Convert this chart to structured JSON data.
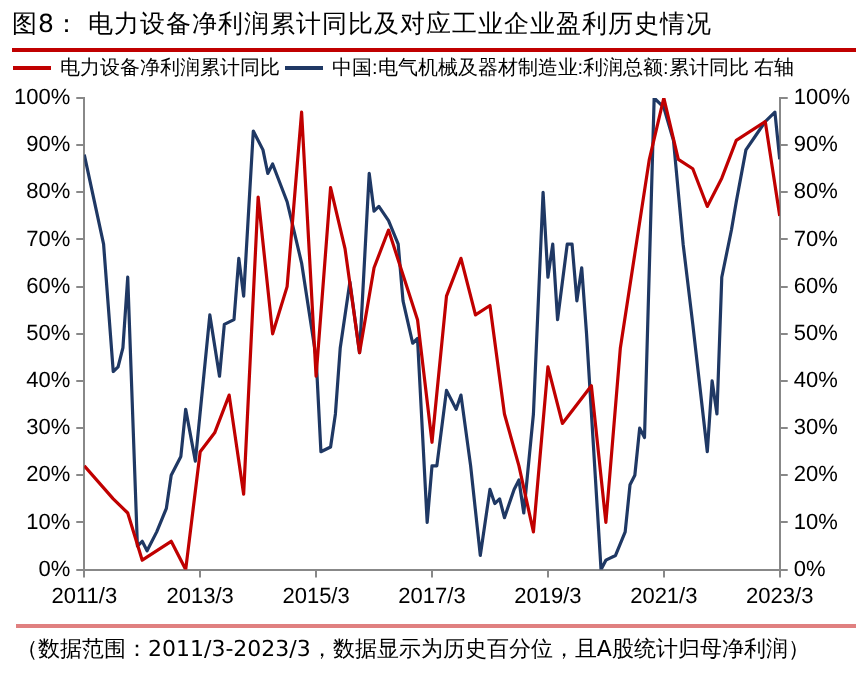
{
  "chart_data": {
    "type": "line",
    "title": "图8：  电力设备净利润累计同比及对应工业企业盈利历史情况",
    "annotations": [
      "（数据范围：2011/3-2023/3，数据显示为历史百分位，且A股统计归母净利润）"
    ],
    "legend": "top left",
    "grid": false,
    "marker": "none",
    "line_style": "solid",
    "xlim": [
      "2011-03",
      "2023-03"
    ],
    "xticks": [
      {
        "value": "2011-03",
        "label": "2011/3"
      },
      {
        "value": "2013-03",
        "label": "2013/3"
      },
      {
        "value": "2015-03",
        "label": "2015/3"
      },
      {
        "value": "2017-03",
        "label": "2017/3"
      },
      {
        "value": "2019-03",
        "label": "2019/3"
      },
      {
        "value": "2021-03",
        "label": "2021/3"
      },
      {
        "value": "2023-03",
        "label": "2023/3"
      }
    ],
    "ylim": [
      0,
      100
    ],
    "yticks": [
      {
        "value": 0,
        "label": "0%"
      },
      {
        "value": 10,
        "label": "10%"
      },
      {
        "value": 20,
        "label": "20%"
      },
      {
        "value": 30,
        "label": "30%"
      },
      {
        "value": 40,
        "label": "40%"
      },
      {
        "value": 50,
        "label": "50%"
      },
      {
        "value": 60,
        "label": "60%"
      },
      {
        "value": 70,
        "label": "70%"
      },
      {
        "value": 80,
        "label": "80%"
      },
      {
        "value": 90,
        "label": "90%"
      },
      {
        "value": 100,
        "label": "100%"
      }
    ],
    "y2lim": [
      0,
      100
    ],
    "y2ticks": [
      {
        "value": 0,
        "label": "0%"
      },
      {
        "value": 10,
        "label": "10%"
      },
      {
        "value": 20,
        "label": "20%"
      },
      {
        "value": 30,
        "label": "30%"
      },
      {
        "value": 40,
        "label": "40%"
      },
      {
        "value": 50,
        "label": "50%"
      },
      {
        "value": 60,
        "label": "60%"
      },
      {
        "value": 70,
        "label": "70%"
      },
      {
        "value": 80,
        "label": "80%"
      },
      {
        "value": 90,
        "label": "90%"
      },
      {
        "value": 100,
        "label": "100%"
      }
    ],
    "series": [
      {
        "name": "电力设备净利润累计同比",
        "color": "#c00000",
        "x": [
          "2011-03",
          "2011-09",
          "2011-12",
          "2012-03",
          "2012-09",
          "2012-12",
          "2013-03",
          "2013-06",
          "2013-09",
          "2013-12",
          "2014-03",
          "2014-06",
          "2014-09",
          "2014-12",
          "2015-03",
          "2015-06",
          "2015-09",
          "2015-12",
          "2016-03",
          "2016-06",
          "2016-12",
          "2017-03",
          "2017-06",
          "2017-09",
          "2017-12",
          "2018-03",
          "2018-06",
          "2018-09",
          "2018-12",
          "2019-03",
          "2019-06",
          "2019-12",
          "2020-03",
          "2020-06",
          "2020-09",
          "2020-12",
          "2021-03",
          "2021-06",
          "2021-09",
          "2021-12",
          "2022-03",
          "2022-06",
          "2022-12",
          "2023-03"
        ],
        "values": [
          22,
          15,
          12,
          2,
          6,
          0,
          25,
          29,
          37,
          16,
          79,
          50,
          60,
          97,
          41,
          81,
          68,
          46,
          64,
          72,
          53,
          27,
          58,
          66,
          54,
          56,
          33,
          22,
          8,
          43,
          31,
          39,
          10,
          47,
          67,
          87,
          100,
          87,
          85,
          77,
          83,
          91,
          95,
          75
        ]
      },
      {
        "name": "中国:电气机械及器材制造业:利润总额:累计同比 右轴",
        "color": "#1f3864",
        "axis": "y2",
        "x": [
          "2011-03",
          "2011-07",
          "2011-09",
          "2011-10",
          "2011-11",
          "2011-12",
          "2012-02",
          "2012-03",
          "2012-04",
          "2012-06",
          "2012-08",
          "2012-09",
          "2012-11",
          "2012-12",
          "2013-02",
          "2013-05",
          "2013-07",
          "2013-08",
          "2013-10",
          "2013-11",
          "2013-12",
          "2014-02",
          "2014-04",
          "2014-05",
          "2014-06",
          "2014-09",
          "2014-12",
          "2015-03",
          "2015-04",
          "2015-06",
          "2015-07",
          "2015-08",
          "2015-10",
          "2015-12",
          "2016-02",
          "2016-03",
          "2016-04",
          "2016-06",
          "2016-08",
          "2016-09",
          "2016-11",
          "2016-12",
          "2017-02",
          "2017-03",
          "2017-04",
          "2017-06",
          "2017-08",
          "2017-09",
          "2017-11",
          "2018-01",
          "2018-03",
          "2018-04",
          "2018-05",
          "2018-06",
          "2018-08",
          "2018-09",
          "2018-10",
          "2018-12",
          "2019-02",
          "2019-03",
          "2019-04",
          "2019-05",
          "2019-07",
          "2019-08",
          "2019-09",
          "2019-10",
          "2019-11",
          "2020-02",
          "2020-03",
          "2020-05",
          "2020-07",
          "2020-08",
          "2020-09",
          "2020-10",
          "2020-11",
          "2021-01",
          "2021-03",
          "2021-05",
          "2021-07",
          "2021-09",
          "2021-12",
          "2022-01",
          "2022-02",
          "2022-03",
          "2022-05",
          "2022-06",
          "2022-08",
          "2022-10",
          "2022-12",
          "2023-02",
          "2023-03"
        ],
        "values": [
          88,
          69,
          42,
          43,
          47,
          62,
          5,
          6,
          4,
          8,
          13,
          20,
          24,
          34,
          23,
          54,
          41,
          52,
          53,
          66,
          58,
          93,
          89,
          84,
          86,
          78,
          65,
          45,
          25,
          26,
          33,
          47,
          61,
          46,
          84,
          76,
          77,
          74,
          69,
          57,
          48,
          49,
          10,
          22,
          22,
          38,
          34,
          37,
          22,
          3,
          17,
          14,
          15,
          11,
          17,
          19,
          12,
          33,
          80,
          62,
          69,
          53,
          69,
          69,
          57,
          64,
          50,
          0,
          2,
          3,
          8,
          18,
          20,
          30,
          28,
          100,
          98,
          91,
          69,
          52,
          25,
          40,
          33,
          62,
          72,
          78,
          89,
          92,
          95,
          97,
          87
        ]
      }
    ]
  }
}
